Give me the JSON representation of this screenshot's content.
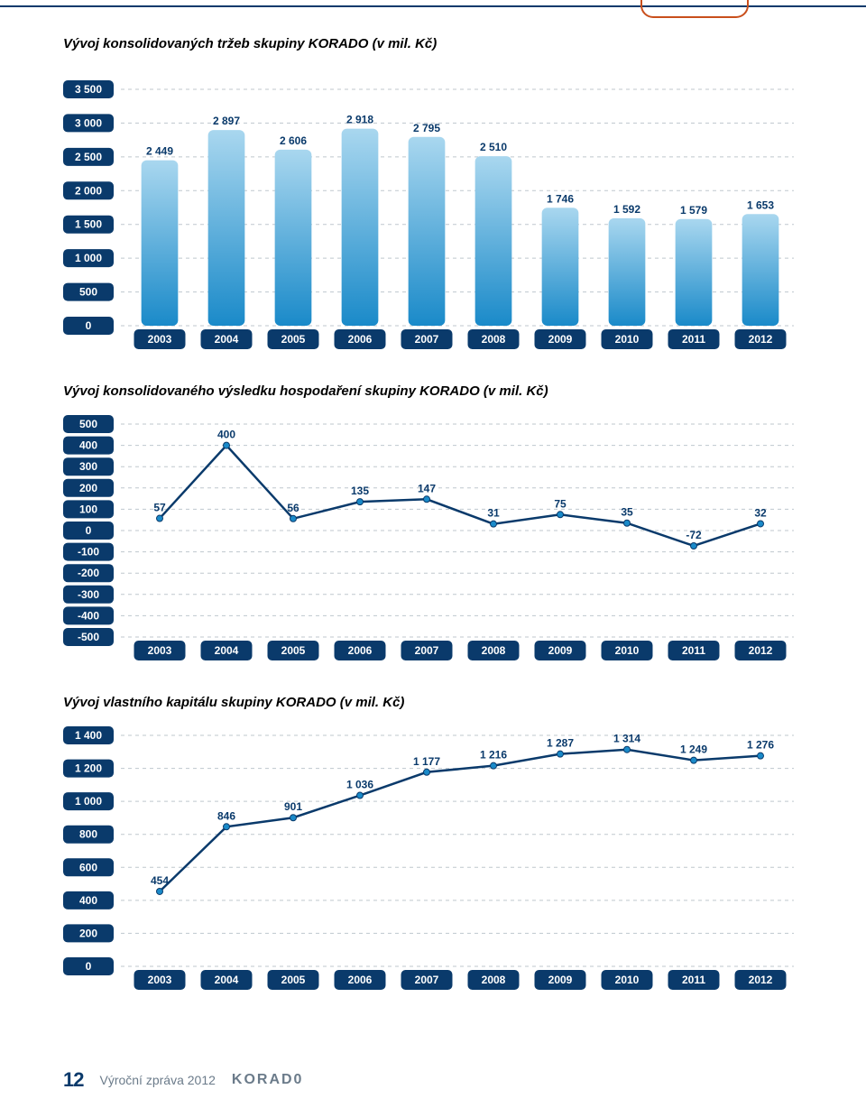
{
  "page_number": "12",
  "footer_text": "Výroční zpráva 2012",
  "footer_logo": "KORAD0",
  "colors": {
    "axis_box": "#0a3a6b",
    "axis_text": "#ffffff",
    "grid": "#bfc7ce",
    "value_label": "#0a3a6b",
    "bar_top": "#a9d7ef",
    "bar_bottom": "#1a8ac9",
    "line": "#0a3a6b",
    "marker_fill": "#1a8ac9",
    "background": "#ffffff"
  },
  "chart1": {
    "title": "Vývoj konsolidovaných tržeb skupiny KORADO (v mil. Kč)",
    "type": "bar",
    "categories": [
      "2003",
      "2004",
      "2005",
      "2006",
      "2007",
      "2008",
      "2009",
      "2010",
      "2011",
      "2012"
    ],
    "values": [
      2449,
      2897,
      2606,
      2918,
      2795,
      2510,
      1746,
      1592,
      1579,
      1653
    ],
    "y_ticks": [
      0,
      500,
      1000,
      1500,
      2000,
      2500,
      3000,
      3500
    ],
    "ylim": [
      0,
      3500
    ],
    "value_fontsize": 12,
    "axis_fontsize": 12
  },
  "chart2": {
    "title": "Vývoj konsolidovaného výsledku hospodaření skupiny KORADO (v mil. Kč)",
    "type": "line",
    "categories": [
      "2003",
      "2004",
      "2005",
      "2006",
      "2007",
      "2008",
      "2009",
      "2010",
      "2011",
      "2012"
    ],
    "values": [
      57,
      400,
      56,
      135,
      147,
      31,
      75,
      35,
      -72,
      32
    ],
    "y_ticks": [
      -500,
      -400,
      -300,
      -200,
      -100,
      0,
      100,
      200,
      300,
      400,
      500
    ],
    "ylim": [
      -500,
      500
    ],
    "value_fontsize": 12,
    "axis_fontsize": 12
  },
  "chart3": {
    "title": "Vývoj vlastního kapitálu skupiny KORADO (v mil. Kč)",
    "type": "line",
    "categories": [
      "2003",
      "2004",
      "2005",
      "2006",
      "2007",
      "2008",
      "2009",
      "2010",
      "2011",
      "2012"
    ],
    "values": [
      454,
      846,
      901,
      1036,
      1177,
      1216,
      1287,
      1314,
      1249,
      1276
    ],
    "y_ticks": [
      0,
      200,
      400,
      600,
      800,
      1000,
      1200,
      1400
    ],
    "ylim": [
      0,
      1400
    ],
    "value_fontsize": 12,
    "axis_fontsize": 12
  }
}
